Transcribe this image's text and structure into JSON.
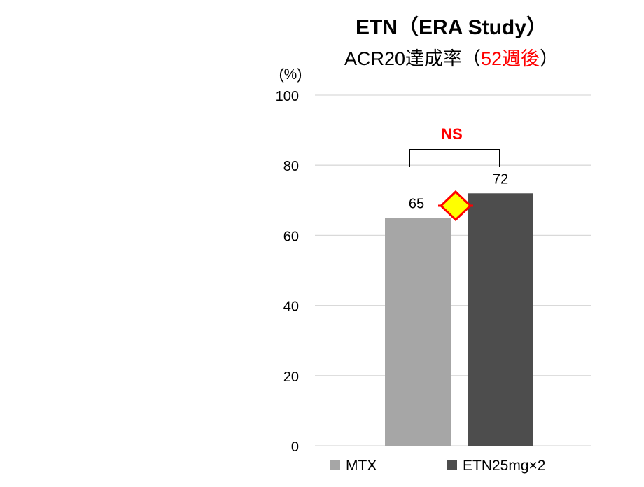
{
  "title": "ETN（ERA Study）",
  "subtitle_main": "ACR20達成率（",
  "subtitle_highlight": "52週後",
  "subtitle_end": "）",
  "colors": {
    "bar_mtx": "#a6a6a6",
    "bar_etn": "#4d4d4d",
    "grid": "#d9d9d9",
    "highlight": "#ff0000",
    "diamond_fill": "#ffff00"
  },
  "chart_data": {
    "type": "bar",
    "title": "ETN（ERA Study）",
    "subtitle": "ACR20達成率（52週後）",
    "ylabel": "(%)",
    "ylim": [
      0,
      100
    ],
    "yticks": [
      0,
      20,
      40,
      60,
      80,
      100
    ],
    "grid": true,
    "legend_position": "bottom",
    "series": [
      {
        "name": "MTX",
        "values": [
          65
        ],
        "color": "#a6a6a6"
      },
      {
        "name": "ETN25mg×2",
        "values": [
          72
        ],
        "color": "#4d4d4d"
      }
    ],
    "annotations": [
      {
        "type": "significance-bracket",
        "label": "NS",
        "color": "#ff0000"
      },
      {
        "type": "comparison-marker",
        "shape": "diamond",
        "fill": "#ffff00",
        "stroke": "#ff0000"
      }
    ]
  }
}
